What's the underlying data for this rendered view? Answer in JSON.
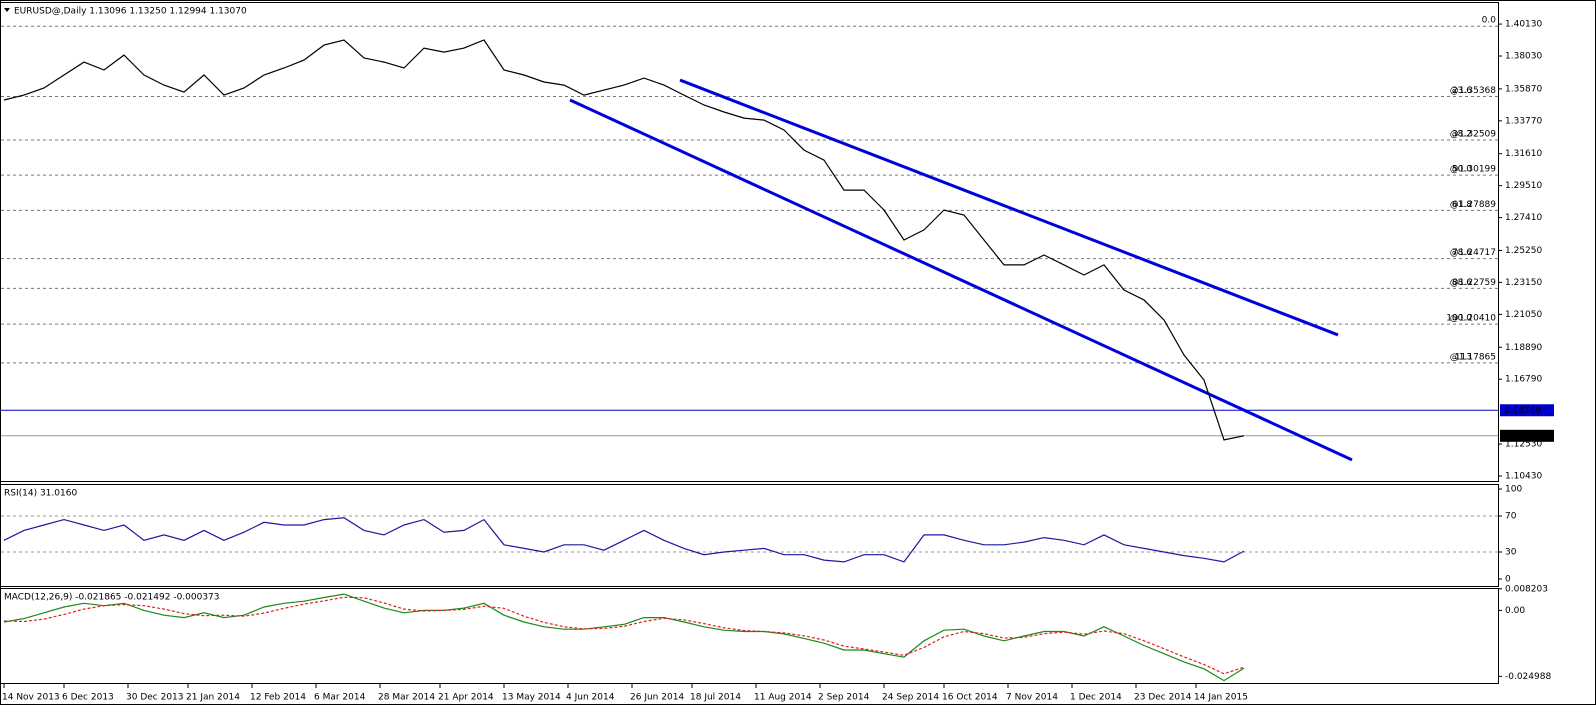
{
  "chart_data": [
    {
      "type": "line",
      "title": "EURUSD@,Daily  1.13096 1.13250 1.12994 1.13070",
      "x": [
        0,
        5,
        10,
        15,
        20,
        25,
        30,
        35,
        40,
        45,
        50,
        55,
        60,
        65,
        70,
        75,
        80,
        85,
        90,
        95,
        100,
        105,
        110,
        115,
        120,
        125,
        130,
        135,
        140,
        145,
        150,
        155,
        160,
        165,
        170,
        175,
        180,
        185,
        190,
        195,
        200,
        205,
        210,
        215,
        220,
        225,
        230,
        235,
        240,
        245,
        250,
        255,
        260,
        265,
        270,
        275,
        280,
        285,
        290,
        295,
        300,
        305,
        310
      ],
      "series": [
        {
          "color": "#000000",
          "values": [
            1.3514,
            1.3546,
            1.3593,
            1.3678,
            1.3763,
            1.3711,
            1.3809,
            1.3678,
            1.3612,
            1.3566,
            1.3678,
            1.3546,
            1.3593,
            1.3678,
            1.3724,
            1.3776,
            1.3875,
            1.3908,
            1.379,
            1.3763,
            1.3724,
            1.3855,
            1.3829,
            1.3855,
            1.3908,
            1.3711,
            1.3678,
            1.3632,
            1.3612,
            1.3546,
            1.3579,
            1.3612,
            1.3658,
            1.3612,
            1.3546,
            1.3481,
            1.3435,
            1.3395,
            1.3382,
            1.3317,
            1.3185,
            1.3119,
            1.2922,
            1.2922,
            1.2791,
            1.2594,
            1.266,
            1.2791,
            1.2758,
            1.2594,
            1.243,
            1.243,
            1.2495,
            1.243,
            1.2364,
            1.243,
            1.2265,
            1.22,
            1.2068,
            1.1838,
            1.1674,
            1.128,
            1.1307
          ]
        }
      ],
      "xlim": [
        -1,
        373.5
      ],
      "ylim": [
        1.101,
        1.4158
      ],
      "yticks": [
        {
          "value": 1.4013,
          "label": "1.40130"
        },
        {
          "value": 1.3803,
          "label": "1.38030"
        },
        {
          "value": 1.3587,
          "label": "1.35870"
        },
        {
          "value": 1.3377,
          "label": "1.33770"
        },
        {
          "value": 1.3161,
          "label": "1.31610"
        },
        {
          "value": 1.2951,
          "label": "1.29510"
        },
        {
          "value": 1.2741,
          "label": "1.27410"
        },
        {
          "value": 1.2525,
          "label": "1.25250"
        },
        {
          "value": 1.2315,
          "label": "1.23150"
        },
        {
          "value": 1.2105,
          "label": "1.21050"
        },
        {
          "value": 1.1889,
          "label": "1.18890"
        },
        {
          "value": 1.1679,
          "label": "1.16790"
        },
        {
          "value": 1.1253,
          "label": "1.12530"
        },
        {
          "value": 1.1043,
          "label": "1.10430"
        }
      ],
      "levels": [
        {
          "value": 1.14749,
          "label": "1.14749",
          "color": "#0000cc"
        },
        {
          "value": 1.1307,
          "label": "1.13070",
          "color": "#999999"
        }
      ],
      "fibonacci": [
        {
          "level": "0.0",
          "price": 1.39988
        },
        {
          "level": "23.6",
          "price": 1.35368,
          "price_label": "@1.35368"
        },
        {
          "level": "38.2",
          "price": 1.32509,
          "price_label": "@1.32509"
        },
        {
          "level": "50.0",
          "price": 1.30199,
          "price_label": "@1.30199"
        },
        {
          "level": "61.8",
          "price": 1.27889,
          "price_label": "@1.27889"
        },
        {
          "level": "78.6",
          "price": 1.24717,
          "price_label": "@1.24717"
        },
        {
          "level": "88.6",
          "price": 1.22759,
          "price_label": "@1.22759"
        },
        {
          "level": "100.0",
          "price": 1.2041,
          "price_label": "@1.20410"
        },
        {
          "level": "113",
          "price": 1.17865,
          "price_label": "@1.17865"
        }
      ],
      "channel": [
        {
          "color": "#0000dd",
          "x": [
            169,
            333.5
          ],
          "values": [
            1.3645,
            1.197
          ]
        },
        {
          "color": "#0000dd",
          "x": [
            141.5,
            337
          ],
          "values": [
            1.3514,
            1.1149
          ]
        }
      ]
    },
    {
      "type": "line",
      "title": "RSI(14) 31.0160",
      "x": [
        0,
        5,
        10,
        15,
        20,
        25,
        30,
        35,
        40,
        45,
        50,
        55,
        60,
        65,
        70,
        75,
        80,
        85,
        90,
        95,
        100,
        105,
        110,
        115,
        120,
        125,
        130,
        135,
        140,
        145,
        150,
        155,
        160,
        165,
        170,
        175,
        180,
        185,
        190,
        195,
        200,
        205,
        210,
        215,
        220,
        225,
        230,
        235,
        240,
        245,
        250,
        255,
        260,
        265,
        270,
        275,
        280,
        285,
        290,
        295,
        300,
        305,
        310
      ],
      "series": [
        {
          "color": "#1a1aa0",
          "values": [
            43,
            54,
            60,
            66,
            60,
            54,
            60,
            43,
            49,
            43,
            54,
            43,
            52,
            63,
            60,
            60,
            66,
            68,
            54,
            49,
            60,
            66,
            52,
            54,
            66,
            38,
            34,
            30,
            38,
            38,
            32,
            43,
            54,
            43,
            34,
            27,
            30,
            32,
            34,
            27,
            27,
            21,
            19,
            27,
            27,
            19,
            49,
            49,
            43,
            38,
            38,
            41,
            46,
            43,
            38,
            49,
            38,
            34,
            30,
            26,
            23,
            19,
            31
          ]
        }
      ],
      "xlim": [
        -1,
        373.5
      ],
      "ylim": [
        -7.8,
        105.6
      ],
      "yticks": [
        100,
        70,
        30,
        0
      ],
      "levels": [
        {
          "value": 70
        },
        {
          "value": 30
        }
      ]
    },
    {
      "type": "line",
      "title": "MACD(12,26,9) -0.021865 -0.021492 -0.000373",
      "x": [
        0,
        5,
        10,
        15,
        20,
        25,
        30,
        35,
        40,
        45,
        50,
        55,
        60,
        65,
        70,
        75,
        80,
        85,
        90,
        95,
        100,
        105,
        110,
        115,
        120,
        125,
        130,
        135,
        140,
        145,
        150,
        155,
        160,
        165,
        170,
        175,
        180,
        185,
        190,
        195,
        200,
        205,
        210,
        215,
        220,
        225,
        230,
        235,
        240,
        245,
        250,
        255,
        260,
        265,
        270,
        275,
        280,
        285,
        290,
        295,
        300,
        305,
        310
      ],
      "series": [
        {
          "color": "#1a8a1a",
          "values": [
            -0.0044,
            -0.0031,
            -0.0009,
            0.0013,
            0.0027,
            0.0018,
            0.0027,
            0,
            -0.0018,
            -0.0027,
            -0.0009,
            -0.0027,
            -0.0018,
            0.0013,
            0.0027,
            0.0035,
            0.0049,
            0.0062,
            0.0035,
            0.0009,
            -0.0009,
            0,
            0,
            0.0009,
            0.0027,
            -0.0018,
            -0.0044,
            -0.0062,
            -0.0071,
            -0.0071,
            -0.0062,
            -0.0053,
            -0.0027,
            -0.0027,
            -0.0044,
            -0.0062,
            -0.0075,
            -0.008,
            -0.008,
            -0.0089,
            -0.0106,
            -0.0124,
            -0.015,
            -0.015,
            -0.0164,
            -0.0177,
            -0.0115,
            -0.0075,
            -0.0071,
            -0.0097,
            -0.0115,
            -0.0097,
            -0.008,
            -0.008,
            -0.0097,
            -0.0062,
            -0.0097,
            -0.0133,
            -0.0164,
            -0.0195,
            -0.0221,
            -0.0266,
            -0.0219
          ]
        },
        {
          "color": "#e02020",
          "dashed": true,
          "values": [
            -0.004,
            -0.0042,
            -0.0033,
            -0.0015,
            0.0005,
            0.0018,
            0.0022,
            0.0018,
            0.0005,
            -0.0012,
            -0.002,
            -0.0018,
            -0.0022,
            -0.001,
            0.0008,
            0.0024,
            0.0036,
            0.005,
            0.0048,
            0.0028,
            0.0005,
            -0.0002,
            0,
            0.0004,
            0.0016,
            0.0008,
            -0.0022,
            -0.0045,
            -0.0062,
            -0.007,
            -0.0068,
            -0.006,
            -0.0042,
            -0.003,
            -0.0036,
            -0.005,
            -0.0066,
            -0.0076,
            -0.008,
            -0.0085,
            -0.0096,
            -0.0112,
            -0.0135,
            -0.0146,
            -0.0158,
            -0.017,
            -0.014,
            -0.01,
            -0.008,
            -0.0088,
            -0.0105,
            -0.0102,
            -0.0088,
            -0.0082,
            -0.009,
            -0.0078,
            -0.0088,
            -0.0115,
            -0.0145,
            -0.0176,
            -0.0205,
            -0.024,
            -0.0215
          ]
        }
      ],
      "xlim": [
        -1,
        373.5
      ],
      "ylim": [
        -0.0275,
        0.0085
      ],
      "yticks": [
        0.008203,
        {
          "value": 0,
          "label": "0.00"
        },
        -0.024988
      ],
      "xticks": [
        {
          "value": 0,
          "label": "14 Nov 2013"
        },
        {
          "value": 15,
          "label": "6 Dec 2013"
        },
        {
          "value": 31,
          "label": "30 Dec 2013"
        },
        {
          "value": 46,
          "label": "21 Jan 2014"
        },
        {
          "value": 62,
          "label": "12 Feb 2014"
        },
        {
          "value": 78,
          "label": "6 Mar 2014"
        },
        {
          "value": 94,
          "label": "28 Mar 2014"
        },
        {
          "value": 109,
          "label": "21 Apr 2014"
        },
        {
          "value": 125,
          "label": "13 May 2014"
        },
        {
          "value": 141,
          "label": "4 Jun 2014"
        },
        {
          "value": 157,
          "label": "26 Jun 2014"
        },
        {
          "value": 172,
          "label": "18 Jul 2014"
        },
        {
          "value": 188,
          "label": "11 Aug 2014"
        },
        {
          "value": 204,
          "label": "2 Sep 2014"
        },
        {
          "value": 220,
          "label": "24 Sep 2014"
        },
        {
          "value": 235,
          "label": "16 Oct 2014"
        },
        {
          "value": 251,
          "label": "7 Nov 2014"
        },
        {
          "value": 267,
          "label": "1 Dec 2014"
        },
        {
          "value": 283,
          "label": "23 Dec 2014"
        },
        {
          "value": 298,
          "label": "14 Jan 2015"
        }
      ]
    }
  ]
}
